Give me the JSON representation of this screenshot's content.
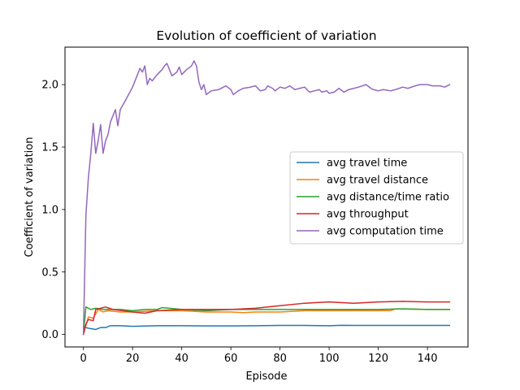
{
  "chart_data": {
    "type": "line",
    "title": "Evolution of coefficient of variation",
    "xlabel": "Episode",
    "ylabel": "Coefficient of variation",
    "xlim": [
      -7.5,
      156.5
    ],
    "ylim": [
      -0.1,
      2.3
    ],
    "xticks": [
      0,
      20,
      40,
      60,
      80,
      100,
      120,
      140
    ],
    "yticks": [
      0.0,
      0.5,
      1.0,
      1.5,
      2.0
    ],
    "ytick_labels": [
      "0.0",
      "0.5",
      "1.0",
      "1.5",
      "2.0"
    ],
    "grid": false,
    "legend_position": "center-right",
    "series": [
      {
        "name": "avg travel time",
        "color": "#1f77b4",
        "points": [
          [
            0,
            0.06
          ],
          [
            2,
            0.05
          ],
          [
            5,
            0.04
          ],
          [
            7,
            0.055
          ],
          [
            9,
            0.055
          ],
          [
            11,
            0.07
          ],
          [
            15,
            0.07
          ],
          [
            20,
            0.065
          ],
          [
            30,
            0.07
          ],
          [
            40,
            0.07
          ],
          [
            50,
            0.068
          ],
          [
            60,
            0.068
          ],
          [
            70,
            0.07
          ],
          [
            80,
            0.072
          ],
          [
            90,
            0.072
          ],
          [
            100,
            0.07
          ],
          [
            105,
            0.073
          ],
          [
            110,
            0.072
          ],
          [
            120,
            0.072
          ],
          [
            130,
            0.072
          ],
          [
            140,
            0.072
          ],
          [
            149,
            0.072
          ]
        ]
      },
      {
        "name": "avg travel distance",
        "color": "#ff7f0e",
        "points": [
          [
            0,
            0.0
          ],
          [
            2,
            0.14
          ],
          [
            4,
            0.13
          ],
          [
            6,
            0.2
          ],
          [
            8,
            0.18
          ],
          [
            10,
            0.19
          ],
          [
            15,
            0.18
          ],
          [
            20,
            0.18
          ],
          [
            30,
            0.19
          ],
          [
            40,
            0.19
          ],
          [
            50,
            0.18
          ],
          [
            60,
            0.18
          ],
          [
            65,
            0.175
          ],
          [
            70,
            0.18
          ],
          [
            80,
            0.18
          ],
          [
            90,
            0.19
          ],
          [
            100,
            0.19
          ],
          [
            110,
            0.19
          ],
          [
            120,
            0.19
          ],
          [
            125,
            0.19
          ],
          [
            127,
            0.205
          ],
          [
            140,
            0.2
          ],
          [
            149,
            0.2
          ]
        ]
      },
      {
        "name": "avg distance/time ratio",
        "color": "#2ca02c",
        "points": [
          [
            0,
            0.0
          ],
          [
            1,
            0.22
          ],
          [
            3,
            0.2
          ],
          [
            5,
            0.21
          ],
          [
            8,
            0.2
          ],
          [
            12,
            0.2
          ],
          [
            15,
            0.2
          ],
          [
            20,
            0.19
          ],
          [
            25,
            0.2
          ],
          [
            30,
            0.2
          ],
          [
            32,
            0.215
          ],
          [
            35,
            0.21
          ],
          [
            40,
            0.2
          ],
          [
            50,
            0.19
          ],
          [
            60,
            0.2
          ],
          [
            70,
            0.2
          ],
          [
            80,
            0.2
          ],
          [
            90,
            0.2
          ],
          [
            100,
            0.2
          ],
          [
            110,
            0.2
          ],
          [
            120,
            0.2
          ],
          [
            130,
            0.205
          ],
          [
            140,
            0.2
          ],
          [
            149,
            0.2
          ]
        ]
      },
      {
        "name": "avg throughput",
        "color": "#d62728",
        "points": [
          [
            0,
            0.0
          ],
          [
            1,
            0.08
          ],
          [
            2,
            0.12
          ],
          [
            4,
            0.11
          ],
          [
            5,
            0.2
          ],
          [
            7,
            0.21
          ],
          [
            9,
            0.22
          ],
          [
            12,
            0.2
          ],
          [
            16,
            0.19
          ],
          [
            20,
            0.18
          ],
          [
            25,
            0.17
          ],
          [
            30,
            0.19
          ],
          [
            40,
            0.2
          ],
          [
            50,
            0.2
          ],
          [
            60,
            0.2
          ],
          [
            70,
            0.21
          ],
          [
            80,
            0.23
          ],
          [
            90,
            0.25
          ],
          [
            100,
            0.26
          ],
          [
            110,
            0.25
          ],
          [
            120,
            0.26
          ],
          [
            130,
            0.265
          ],
          [
            140,
            0.26
          ],
          [
            149,
            0.26
          ]
        ]
      },
      {
        "name": "avg computation time",
        "color": "#9467bd",
        "points": [
          [
            0,
            0.0
          ],
          [
            1,
            0.95
          ],
          [
            2,
            1.25
          ],
          [
            3,
            1.45
          ],
          [
            4,
            1.69
          ],
          [
            5,
            1.45
          ],
          [
            6,
            1.55
          ],
          [
            7,
            1.68
          ],
          [
            8,
            1.45
          ],
          [
            9,
            1.55
          ],
          [
            10,
            1.6
          ],
          [
            11,
            1.7
          ],
          [
            12,
            1.75
          ],
          [
            13,
            1.8
          ],
          [
            14,
            1.67
          ],
          [
            15,
            1.8
          ],
          [
            17,
            1.87
          ],
          [
            20,
            1.98
          ],
          [
            22,
            2.08
          ],
          [
            23,
            2.13
          ],
          [
            24,
            2.1
          ],
          [
            25,
            2.15
          ],
          [
            26,
            2.0
          ],
          [
            27,
            2.05
          ],
          [
            28,
            2.03
          ],
          [
            30,
            2.08
          ],
          [
            32,
            2.12
          ],
          [
            33,
            2.15
          ],
          [
            34,
            2.17
          ],
          [
            35,
            2.12
          ],
          [
            36,
            2.07
          ],
          [
            38,
            2.1
          ],
          [
            39,
            2.14
          ],
          [
            40,
            2.08
          ],
          [
            42,
            2.12
          ],
          [
            44,
            2.15
          ],
          [
            45,
            2.19
          ],
          [
            46,
            2.15
          ],
          [
            47,
            2.02
          ],
          [
            48,
            1.96
          ],
          [
            49,
            2.0
          ],
          [
            50,
            1.92
          ],
          [
            52,
            1.95
          ],
          [
            55,
            1.96
          ],
          [
            58,
            1.99
          ],
          [
            60,
            1.96
          ],
          [
            61,
            1.92
          ],
          [
            63,
            1.95
          ],
          [
            65,
            1.97
          ],
          [
            68,
            1.98
          ],
          [
            70,
            1.99
          ],
          [
            72,
            1.95
          ],
          [
            74,
            1.96
          ],
          [
            75,
            1.99
          ],
          [
            77,
            1.97
          ],
          [
            78,
            1.95
          ],
          [
            80,
            1.98
          ],
          [
            82,
            1.97
          ],
          [
            84,
            1.99
          ],
          [
            86,
            1.96
          ],
          [
            88,
            1.97
          ],
          [
            90,
            1.98
          ],
          [
            92,
            1.94
          ],
          [
            94,
            1.95
          ],
          [
            96,
            1.96
          ],
          [
            97,
            1.94
          ],
          [
            99,
            1.95
          ],
          [
            100,
            1.93
          ],
          [
            102,
            1.94
          ],
          [
            104,
            1.97
          ],
          [
            106,
            1.94
          ],
          [
            108,
            1.96
          ],
          [
            110,
            1.97
          ],
          [
            112,
            1.98
          ],
          [
            115,
            2.0
          ],
          [
            117,
            1.97
          ],
          [
            118,
            1.96
          ],
          [
            120,
            1.95
          ],
          [
            122,
            1.96
          ],
          [
            125,
            1.95
          ],
          [
            127,
            1.96
          ],
          [
            130,
            1.98
          ],
          [
            132,
            1.97
          ],
          [
            135,
            1.99
          ],
          [
            137,
            2.0
          ],
          [
            140,
            2.0
          ],
          [
            142,
            1.99
          ],
          [
            145,
            1.99
          ],
          [
            147,
            1.98
          ],
          [
            149,
            2.0
          ]
        ]
      }
    ]
  }
}
